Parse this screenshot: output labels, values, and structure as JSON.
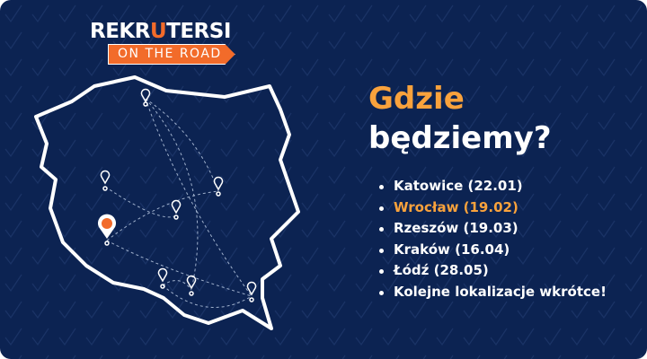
{
  "logo": {
    "text_before": "REKR",
    "text_highlight": "U",
    "text_after": "TERSI",
    "badge": "ON THE ROAD"
  },
  "heading": {
    "line1": "Gdzie",
    "line2": "będziemy?"
  },
  "locations": [
    {
      "label": "Katowice (22.01)",
      "highlighted": false
    },
    {
      "label": "Wrocław (19.02)",
      "highlighted": true
    },
    {
      "label": "Rzeszów (19.03)",
      "highlighted": false
    },
    {
      "label": "Kraków (16.04)",
      "highlighted": false
    },
    {
      "label": "Łódź (28.05)",
      "highlighted": false
    },
    {
      "label": "Kolejne lokalizacje wkrótce!",
      "highlighted": false
    }
  ],
  "colors": {
    "background": "#0c2352",
    "accent": "#f9a23c",
    "brand": "#f26b2a",
    "text": "#ffffff"
  },
  "icons": [
    "map-pin-icon",
    "poland-map-outline",
    "checkmark-pattern"
  ]
}
